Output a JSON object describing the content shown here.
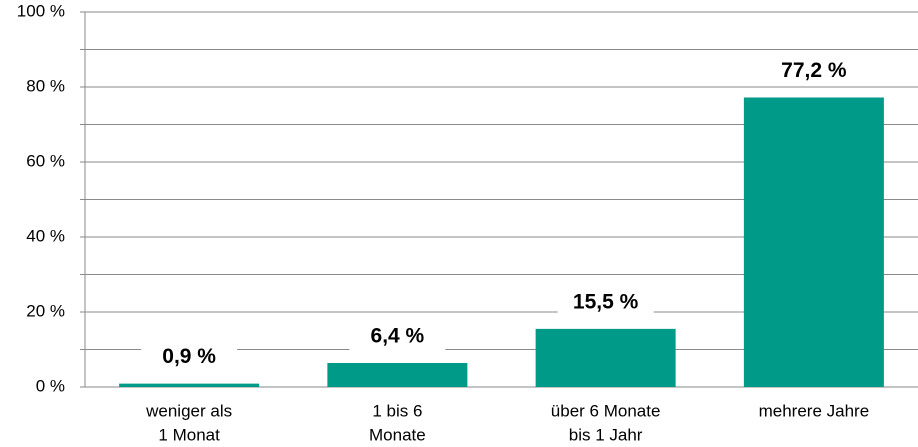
{
  "chart_data": {
    "type": "bar",
    "categories": [
      [
        "weniger als",
        "1 Monat"
      ],
      [
        "1 bis 6",
        "Monate"
      ],
      [
        "über 6 Monate",
        "bis 1 Jahr"
      ],
      [
        "mehrere Jahre"
      ]
    ],
    "values": [
      0.9,
      6.4,
      15.5,
      77.2
    ],
    "value_labels": [
      "0,9 %",
      "6,4 %",
      "15,5 %",
      "77,2 %"
    ],
    "color": "#009a88",
    "ylim": [
      0,
      100
    ],
    "yticks": [
      {
        "value": 0,
        "label": "0 %"
      },
      {
        "value": 20,
        "label": "20 %"
      },
      {
        "value": 40,
        "label": "40 %"
      },
      {
        "value": 60,
        "label": "60 %"
      },
      {
        "value": 80,
        "label": "80 %"
      },
      {
        "value": 100,
        "label": "100 %"
      }
    ],
    "minor_yticks": [
      10,
      30,
      50,
      70,
      90
    ],
    "grid": true
  }
}
